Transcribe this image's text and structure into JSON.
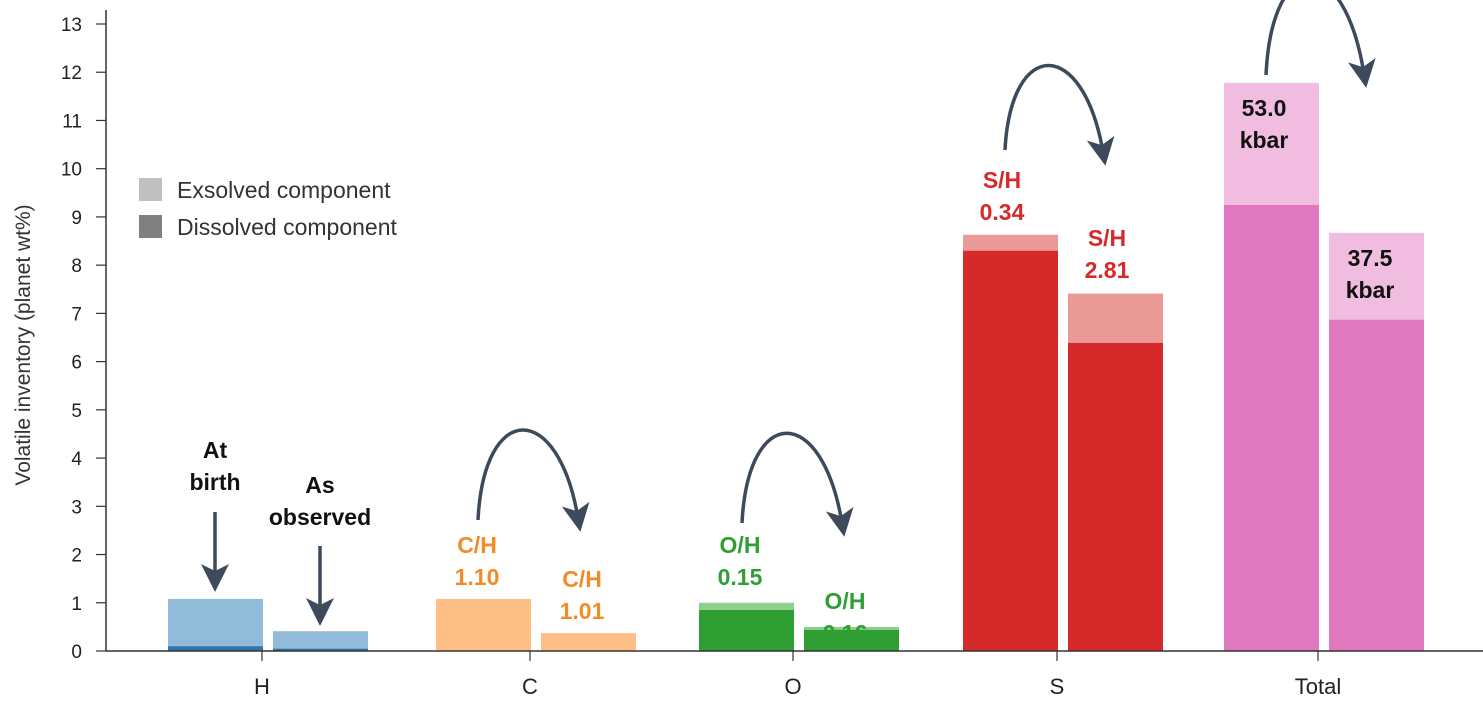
{
  "chart_data": {
    "type": "bar",
    "stacked": true,
    "ylabel": "Volatile inventory (planet wt%)",
    "ylim": [
      0,
      13
    ],
    "yticks": [
      "0",
      "1",
      "2",
      "3",
      "4",
      "5",
      "6",
      "7",
      "8",
      "9",
      "10",
      "11",
      "12",
      "13"
    ],
    "categories": [
      "H",
      "C",
      "O",
      "S",
      "Total"
    ],
    "legend": {
      "position": "upper-left",
      "entries": [
        {
          "label": "Exsolved component",
          "color": "#c0c0c0"
        },
        {
          "label": "Dissolved component",
          "color": "#808080"
        }
      ]
    },
    "bars": [
      {
        "category": "H",
        "state": "At birth",
        "dissolved": 0.1,
        "total": 1.08,
        "dark": "#2e75b0",
        "light": "#92bad9"
      },
      {
        "category": "H",
        "state": "As observed",
        "dissolved": 0.05,
        "total": 0.41,
        "dark": "#2e75b0",
        "light": "#92bad9"
      },
      {
        "category": "C",
        "state": "At birth",
        "dissolved": 1.08,
        "total": 1.08,
        "dark": "#fdbf85",
        "light": "#fdbf85"
      },
      {
        "category": "C",
        "state": "As observed",
        "dissolved": 0.37,
        "total": 0.37,
        "dark": "#fdbf85",
        "light": "#fdbf85"
      },
      {
        "category": "O",
        "state": "At birth",
        "dissolved": 0.85,
        "total": 1.0,
        "dark": "#2f9e33",
        "light": "#8fcf8c"
      },
      {
        "category": "O",
        "state": "As observed",
        "dissolved": 0.44,
        "total": 0.5,
        "dark": "#2f9e33",
        "light": "#8fcf8c"
      },
      {
        "category": "S",
        "state": "At birth",
        "dissolved": 8.3,
        "total": 8.63,
        "dark": "#d62a2a",
        "light": "#e99a97"
      },
      {
        "category": "S",
        "state": "As observed",
        "dissolved": 6.39,
        "total": 7.41,
        "dark": "#d62a2a",
        "light": "#e99a97"
      },
      {
        "category": "Total",
        "state": "At birth",
        "dissolved": 9.25,
        "total": 11.78,
        "dark": "#e179c0",
        "light": "#f0bde0"
      },
      {
        "category": "Total",
        "state": "As observed",
        "dissolved": 6.87,
        "total": 8.67,
        "dark": "#e179c0",
        "light": "#f0bde0"
      }
    ],
    "annotations": [
      {
        "lines": [
          "At",
          "birth"
        ],
        "color": "#111111"
      },
      {
        "lines": [
          "As",
          "observed"
        ],
        "color": "#111111"
      },
      {
        "lines": [
          "C/H",
          "1.10"
        ],
        "color": "#f28c28"
      },
      {
        "lines": [
          "C/H",
          "1.01"
        ],
        "color": "#f28c28"
      },
      {
        "lines": [
          "O/H",
          "0.15"
        ],
        "color": "#2f9e33"
      },
      {
        "lines": [
          "O/H",
          "0.16"
        ],
        "color": "#2f9e33"
      },
      {
        "lines": [
          "S/H",
          "0.34"
        ],
        "color": "#d62a2a"
      },
      {
        "lines": [
          "S/H",
          "2.81"
        ],
        "color": "#d62a2a"
      },
      {
        "lines": [
          "53.0",
          "kbar"
        ],
        "color": "#111111"
      },
      {
        "lines": [
          "37.5",
          "kbar"
        ],
        "color": "#111111"
      }
    ],
    "arrow_color": "#3d4a5c"
  }
}
